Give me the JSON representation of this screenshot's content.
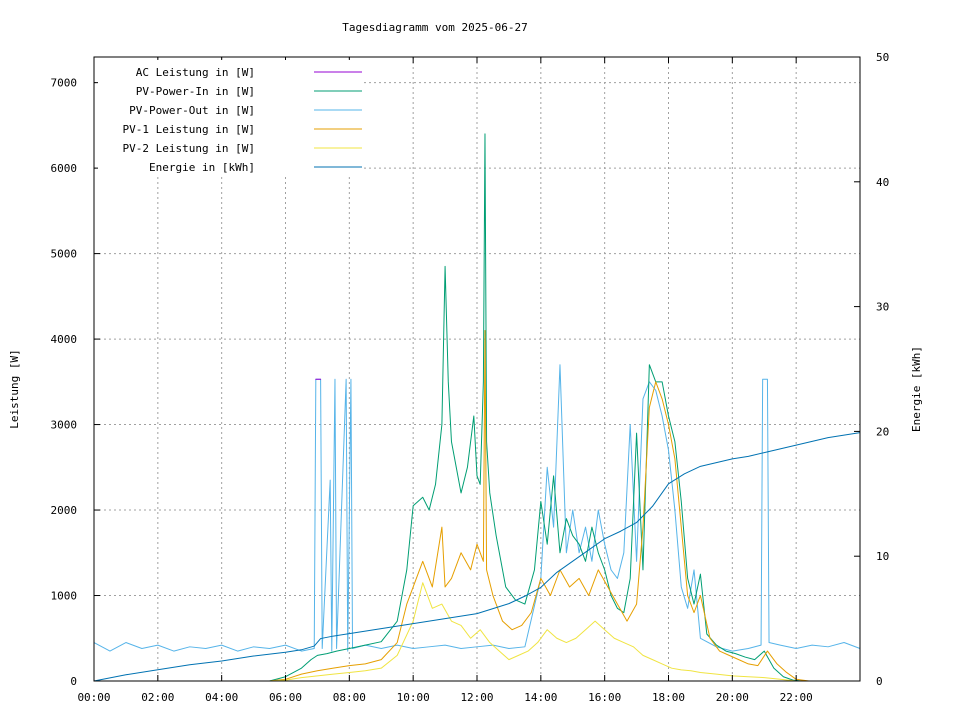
{
  "chart_data": {
    "type": "line",
    "title": "Tagesdiagramm vom 2025-06-27",
    "ylabel": "Leistung [W]",
    "y2label": "Energie [kWh]",
    "xlim": [
      0,
      24
    ],
    "ylim": [
      0,
      7300
    ],
    "y2lim": [
      0,
      50
    ],
    "xticks": [
      {
        "value": 0,
        "label": "00:00"
      },
      {
        "value": 2,
        "label": "02:00"
      },
      {
        "value": 4,
        "label": "04:00"
      },
      {
        "value": 6,
        "label": "06:00"
      },
      {
        "value": 8,
        "label": "08:00"
      },
      {
        "value": 10,
        "label": "10:00"
      },
      {
        "value": 12,
        "label": "12:00"
      },
      {
        "value": 14,
        "label": "14:00"
      },
      {
        "value": 16,
        "label": "16:00"
      },
      {
        "value": 18,
        "label": "18:00"
      },
      {
        "value": 20,
        "label": "20:00"
      },
      {
        "value": 22,
        "label": "22:00"
      }
    ],
    "yticks": [
      {
        "value": 0,
        "label": "0"
      },
      {
        "value": 1000,
        "label": "1000"
      },
      {
        "value": 2000,
        "label": "2000"
      },
      {
        "value": 3000,
        "label": "3000"
      },
      {
        "value": 4000,
        "label": "4000"
      },
      {
        "value": 5000,
        "label": "5000"
      },
      {
        "value": 6000,
        "label": "6000"
      },
      {
        "value": 7000,
        "label": "7000"
      }
    ],
    "y2ticks": [
      {
        "value": 0,
        "label": "0"
      },
      {
        "value": 10,
        "label": "10"
      },
      {
        "value": 20,
        "label": "20"
      },
      {
        "value": 30,
        "label": "30"
      },
      {
        "value": 40,
        "label": "40"
      },
      {
        "value": 50,
        "label": "50"
      }
    ],
    "grid": true,
    "legend_position": "top-left",
    "series": [
      {
        "name": "AC Leistung in [W]",
        "color": "#9400d3",
        "axis": "left",
        "x": [
          6.95,
          7.1
        ],
        "y": [
          3530,
          3530
        ]
      },
      {
        "name": "PV-Power-In in [W]",
        "color": "#009e73",
        "axis": "left",
        "x": [
          0,
          5.5,
          6.0,
          6.5,
          6.8,
          7.0,
          7.3,
          7.6,
          8.0,
          8.5,
          9.0,
          9.5,
          9.8,
          10.0,
          10.3,
          10.5,
          10.7,
          10.9,
          11.0,
          11.1,
          11.2,
          11.3,
          11.5,
          11.7,
          11.9,
          12.0,
          12.1,
          12.2,
          12.25,
          12.3,
          12.4,
          12.6,
          12.9,
          13.2,
          13.5,
          13.8,
          14.0,
          14.2,
          14.4,
          14.6,
          14.8,
          15.0,
          15.2,
          15.4,
          15.6,
          15.8,
          16.0,
          16.2,
          16.4,
          16.6,
          16.8,
          17.0,
          17.2,
          17.4,
          17.6,
          17.8,
          18.0,
          18.2,
          18.4,
          18.6,
          18.8,
          19.0,
          19.2,
          19.5,
          19.8,
          20.1,
          20.4,
          20.7,
          21.0,
          21.3,
          21.6,
          21.9,
          22.2,
          22.5,
          24
        ],
        "y": [
          0,
          0,
          50,
          150,
          250,
          300,
          320,
          350,
          380,
          420,
          460,
          700,
          1300,
          2050,
          2150,
          2000,
          2300,
          3000,
          4850,
          3500,
          2800,
          2600,
          2200,
          2500,
          3100,
          2400,
          2300,
          3500,
          6400,
          2800,
          2200,
          1700,
          1100,
          950,
          900,
          1300,
          2100,
          1600,
          2400,
          1500,
          1900,
          1700,
          1600,
          1400,
          1800,
          1500,
          1300,
          1000,
          850,
          800,
          1200,
          2900,
          1300,
          3700,
          3500,
          3500,
          3100,
          2800,
          2100,
          1200,
          900,
          1250,
          550,
          420,
          350,
          320,
          280,
          250,
          350,
          150,
          50,
          10,
          0,
          0,
          0
        ]
      },
      {
        "name": "PV-Power-Out in [W]",
        "color": "#56b4e9",
        "axis": "left",
        "x": [
          0,
          0.5,
          1.0,
          1.5,
          2.0,
          2.5,
          3.0,
          3.5,
          4.0,
          4.5,
          5.0,
          5.5,
          6.0,
          6.5,
          6.9,
          6.95,
          7.1,
          7.15,
          7.4,
          7.45,
          7.55,
          7.6,
          7.9,
          7.95,
          8.05,
          8.1,
          8.5,
          9.0,
          9.5,
          10.0,
          10.5,
          11.0,
          11.5,
          12.0,
          12.5,
          13.0,
          13.5,
          14.0,
          14.2,
          14.4,
          14.6,
          14.8,
          15.0,
          15.2,
          15.4,
          15.6,
          15.8,
          16.0,
          16.2,
          16.4,
          16.6,
          16.8,
          17.0,
          17.2,
          17.4,
          17.6,
          17.8,
          18.0,
          18.2,
          18.4,
          18.6,
          18.8,
          19.0,
          19.5,
          20.0,
          20.5,
          20.9,
          20.95,
          21.1,
          21.15,
          21.5,
          22.0,
          22.5,
          23.0,
          23.5,
          24
        ],
        "y": [
          450,
          350,
          450,
          380,
          420,
          350,
          400,
          380,
          420,
          350,
          400,
          380,
          420,
          350,
          380,
          3530,
          3530,
          380,
          2350,
          350,
          3530,
          380,
          3530,
          350,
          3530,
          380,
          420,
          380,
          420,
          380,
          400,
          420,
          380,
          400,
          420,
          380,
          400,
          1200,
          2500,
          1800,
          3700,
          1500,
          2000,
          1500,
          1800,
          1400,
          2000,
          1600,
          1300,
          1200,
          1500,
          3000,
          1400,
          3300,
          3500,
          3400,
          3100,
          2700,
          2000,
          1100,
          850,
          1300,
          500,
          400,
          350,
          380,
          420,
          3530,
          3530,
          450,
          420,
          380,
          420,
          400,
          450,
          380
        ]
      },
      {
        "name": "PV-1 Leistung in [W]",
        "color": "#e69f00",
        "axis": "left",
        "x": [
          0,
          5.5,
          6.0,
          6.5,
          7.0,
          7.5,
          8.0,
          8.5,
          9.0,
          9.5,
          9.8,
          10.0,
          10.3,
          10.6,
          10.9,
          11.0,
          11.2,
          11.5,
          11.8,
          12.0,
          12.2,
          12.25,
          12.3,
          12.5,
          12.8,
          13.1,
          13.4,
          13.7,
          14.0,
          14.3,
          14.6,
          14.9,
          15.2,
          15.5,
          15.8,
          16.1,
          16.4,
          16.7,
          17.0,
          17.2,
          17.4,
          17.6,
          17.8,
          18.0,
          18.2,
          18.4,
          18.6,
          18.8,
          19.0,
          19.3,
          19.6,
          19.9,
          20.2,
          20.5,
          20.8,
          21.1,
          21.4,
          21.7,
          22.0,
          22.4,
          24
        ],
        "y": [
          0,
          0,
          20,
          80,
          120,
          150,
          180,
          200,
          250,
          450,
          900,
          1100,
          1400,
          1100,
          1800,
          1100,
          1200,
          1500,
          1300,
          1600,
          1400,
          4100,
          1300,
          1000,
          700,
          600,
          650,
          800,
          1200,
          1000,
          1300,
          1100,
          1200,
          1000,
          1300,
          1100,
          900,
          700,
          900,
          1800,
          3200,
          3500,
          3300,
          3000,
          2600,
          1800,
          1000,
          800,
          1000,
          500,
          350,
          300,
          250,
          200,
          180,
          350,
          200,
          100,
          20,
          0,
          0
        ]
      },
      {
        "name": "PV-2 Leistung in [W]",
        "color": "#f0e442",
        "axis": "left",
        "x": [
          0,
          5.5,
          6.0,
          6.5,
          7.0,
          7.5,
          8.0,
          8.5,
          9.0,
          9.5,
          10.0,
          10.3,
          10.6,
          10.9,
          11.2,
          11.5,
          11.8,
          12.1,
          12.4,
          12.7,
          13.0,
          13.3,
          13.6,
          13.9,
          14.2,
          14.5,
          14.8,
          15.1,
          15.4,
          15.7,
          16.0,
          16.3,
          16.6,
          16.9,
          17.2,
          17.5,
          17.8,
          18.1,
          18.4,
          18.7,
          19.0,
          19.5,
          20.0,
          20.5,
          21.0,
          21.5,
          22.0,
          24
        ],
        "y": [
          0,
          0,
          10,
          40,
          60,
          80,
          100,
          120,
          150,
          300,
          700,
          1150,
          850,
          900,
          700,
          650,
          500,
          600,
          450,
          350,
          250,
          300,
          350,
          450,
          600,
          500,
          450,
          500,
          600,
          700,
          600,
          500,
          450,
          400,
          300,
          250,
          200,
          150,
          130,
          120,
          100,
          80,
          60,
          50,
          40,
          20,
          0,
          0
        ]
      },
      {
        "name": "Energie in [kWh]",
        "color": "#0072b2",
        "axis": "right",
        "x": [
          0,
          1,
          2,
          3,
          4,
          5,
          6,
          6.5,
          6.9,
          7.1,
          7.5,
          8,
          9,
          10,
          11,
          12,
          12.5,
          13,
          13.5,
          14,
          14.5,
          15,
          15.5,
          16,
          16.5,
          17,
          17.5,
          18,
          18.5,
          19,
          19.5,
          20,
          20.5,
          21,
          21.5,
          22,
          22.5,
          23,
          23.5,
          24
        ],
        "y": [
          0,
          0.5,
          0.9,
          1.3,
          1.6,
          2.0,
          2.3,
          2.5,
          2.8,
          3.4,
          3.6,
          3.8,
          4.2,
          4.6,
          5.0,
          5.4,
          5.8,
          6.2,
          6.8,
          7.5,
          8.7,
          9.6,
          10.5,
          11.4,
          12.0,
          12.7,
          14.0,
          15.8,
          16.6,
          17.2,
          17.5,
          17.8,
          18.0,
          18.3,
          18.6,
          18.9,
          19.2,
          19.5,
          19.7,
          19.9
        ]
      }
    ]
  }
}
